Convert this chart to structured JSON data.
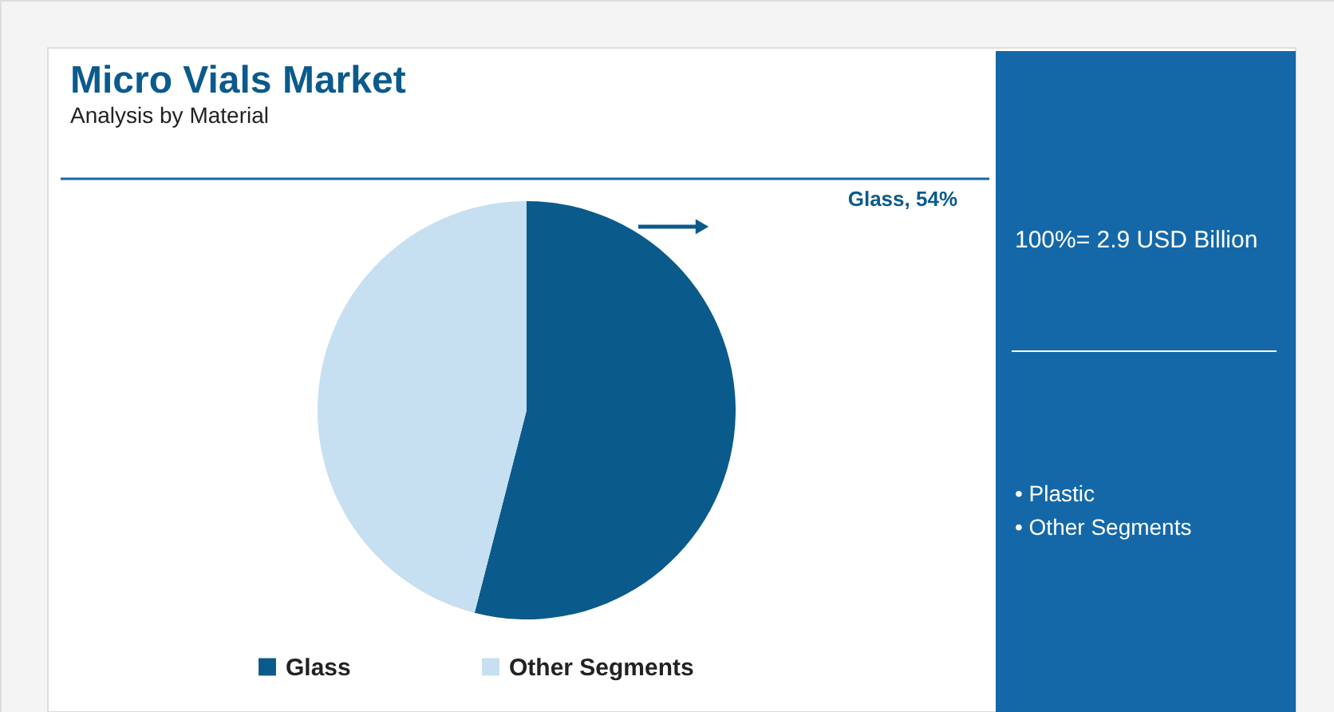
{
  "chart_data": {
    "type": "pie",
    "title": "Micro Vials Market",
    "subtitle": "Analysis by Material",
    "categories": [
      "Glass",
      "Other Segments"
    ],
    "values": [
      54,
      46
    ],
    "colors": [
      "#0b5a8c",
      "#c6dff1"
    ],
    "value_labels": [
      "Glass, 54%",
      null
    ],
    "legend": "bottom",
    "annotations": [
      "100%= 2.9 USD Billion",
      "• Plastic",
      "• Other Segments"
    ]
  }
}
